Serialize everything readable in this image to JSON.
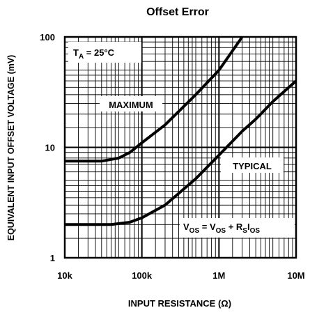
{
  "chart_data": {
    "type": "line",
    "title": "Offset Error",
    "x_label": "INPUT RESISTANCE (Ω)",
    "y_label": "EQUIVALENT INPUT OFFSET VOLTAGE (mV)",
    "log_x": true,
    "log_y": true,
    "grid": true,
    "xlim": [
      10000,
      10000000
    ],
    "ylim": [
      1,
      100
    ],
    "xticks": [
      {
        "value": 10000,
        "label": "10k"
      },
      {
        "value": 100000,
        "label": "100k"
      },
      {
        "value": 1000000,
        "label": "1M"
      },
      {
        "value": 10000000,
        "label": "10M"
      }
    ],
    "yticks": [
      1,
      10,
      100
    ],
    "series": [
      {
        "name": "MAXIMUM",
        "color": "#000000",
        "x": [
          10000,
          30000,
          50000,
          70000,
          100000,
          200000,
          500000,
          1000000,
          2000000
        ],
        "values": [
          7.5,
          7.5,
          8,
          9,
          11,
          16,
          30,
          50,
          100
        ]
      },
      {
        "name": "TYPICAL",
        "color": "#000000",
        "x": [
          10000,
          40000,
          70000,
          100000,
          200000,
          500000,
          1000000,
          2000000,
          3000000,
          5000000,
          10000000
        ],
        "values": [
          2,
          2,
          2.1,
          2.3,
          3,
          5.2,
          8.5,
          14,
          18,
          26,
          40
        ]
      }
    ],
    "annotations": [
      [
        {
          "text": "T"
        },
        {
          "text": "A",
          "sub": true
        },
        {
          "text": " = 25°C"
        }
      ],
      [
        {
          "text": "V"
        },
        {
          "text": "OS",
          "sub": true
        },
        {
          "text": " = V"
        },
        {
          "text": "OS",
          "sub": true
        },
        {
          "text": " + R"
        },
        {
          "text": "S",
          "sub": true
        },
        {
          "text": "I"
        },
        {
          "text": "OS",
          "sub": true
        }
      ]
    ]
  }
}
